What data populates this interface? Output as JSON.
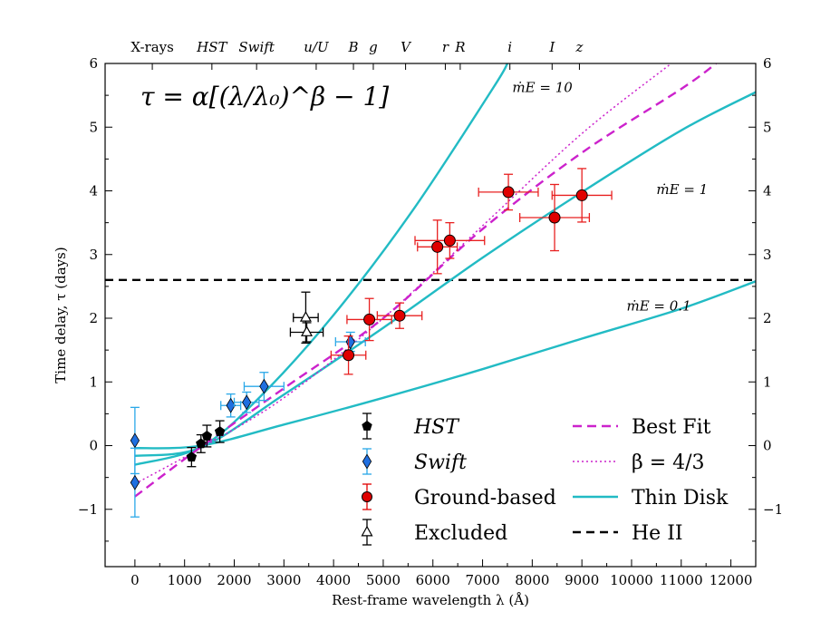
{
  "chart_data": {
    "type": "scatter",
    "xlabel": "Rest-frame wavelength λ (Å)",
    "ylabel": "Time delay, τ (days)",
    "xlim": [
      -600,
      12500
    ],
    "ylim": [
      -1.9,
      6.0
    ],
    "xticks": [
      0,
      1000,
      2000,
      3000,
      4000,
      5000,
      6000,
      7000,
      8000,
      9000,
      10000,
      11000,
      12000
    ],
    "yticks": [
      -1,
      0,
      1,
      2,
      3,
      4,
      5,
      6
    ],
    "formula": "τ = α[(λ/λ₀)^β − 1]",
    "top_bands": [
      {
        "label": "X-rays",
        "x": 350
      },
      {
        "label": "HST",
        "x": 1550
      },
      {
        "label": "Swift",
        "x": 2450
      },
      {
        "label": "u/U",
        "x": 3650
      },
      {
        "label": "B",
        "x": 4400
      },
      {
        "label": "g",
        "x": 4800
      },
      {
        "label": "V",
        "x": 5450
      },
      {
        "label": "r",
        "x": 6250
      },
      {
        "label": "R",
        "x": 6550
      },
      {
        "label": "i",
        "x": 7550
      },
      {
        "label": "I",
        "x": 8400
      },
      {
        "label": "z",
        "x": 8950
      }
    ],
    "series": [
      {
        "name": "HST",
        "color": "#000000",
        "marker": "pentagon",
        "points": [
          {
            "x": 1140,
            "y": -0.18,
            "xerr": 0,
            "yerr": 0.15
          },
          {
            "x": 1330,
            "y": 0.03,
            "xerr": 0,
            "yerr": 0.14
          },
          {
            "x": 1450,
            "y": 0.15,
            "xerr": 0,
            "yerr": 0.17
          },
          {
            "x": 1710,
            "y": 0.22,
            "xerr": 0,
            "yerr": 0.17
          }
        ]
      },
      {
        "name": "Swift",
        "color": "#1f6fe0",
        "errcolor": "#2aa8e8",
        "marker": "diamond",
        "points": [
          {
            "x": 0,
            "y": 0.08,
            "xerr": 0,
            "yerr": 0.52
          },
          {
            "x": 0,
            "y": -0.58,
            "xerr": 0,
            "yerr": 0.54
          },
          {
            "x": 1930,
            "y": 0.63,
            "xerr": 200,
            "yerr": 0.18
          },
          {
            "x": 2250,
            "y": 0.68,
            "xerr": 250,
            "yerr": 0.16
          },
          {
            "x": 2600,
            "y": 0.93,
            "xerr": 400,
            "yerr": 0.22
          },
          {
            "x": 4340,
            "y": 1.63,
            "xerr": 300,
            "yerr": 0.15
          }
        ]
      },
      {
        "name": "Ground-based",
        "color": "#e00000",
        "errcolor": "#e82020",
        "marker": "circle",
        "points": [
          {
            "x": 4300,
            "y": 1.42,
            "xerr": 350,
            "yerr": 0.3
          },
          {
            "x": 4720,
            "y": 1.98,
            "xerr": 450,
            "yerr": 0.33
          },
          {
            "x": 5330,
            "y": 2.04,
            "xerr": 450,
            "yerr": 0.2
          },
          {
            "x": 6090,
            "y": 3.12,
            "xerr": 400,
            "yerr": 0.42
          },
          {
            "x": 6340,
            "y": 3.22,
            "xerr": 700,
            "yerr": 0.28
          },
          {
            "x": 7520,
            "y": 3.98,
            "xerr": 600,
            "yerr": 0.28
          },
          {
            "x": 8450,
            "y": 3.58,
            "xerr": 700,
            "yerr": 0.52
          },
          {
            "x": 9000,
            "y": 3.93,
            "xerr": 600,
            "yerr": 0.42
          }
        ]
      },
      {
        "name": "Excluded",
        "color": "#000000",
        "marker": "open-triangle",
        "points": [
          {
            "x": 3440,
            "y": 2.01,
            "xerr": 250,
            "yerr": 0.4
          },
          {
            "x": 3460,
            "y": 1.78,
            "xerr": 330,
            "yerr": 0.15
          }
        ]
      }
    ],
    "fit_curves": {
      "alpha": 0.8,
      "lambda0": 1367,
      "lines": [
        {
          "name": "Best Fit",
          "style": "dashed",
          "color": "#cc22cc",
          "alpha": 0.8,
          "beta": 1.83
        },
        {
          "name": "β = 4/3",
          "style": "dotted",
          "color": "#cc22cc",
          "alpha": 0.8,
          "beta": 1.333
        },
        {
          "name": "Thin Disk ṁE = 10",
          "style": "solid",
          "color": "#22bbc4",
          "alpha": 0.3,
          "beta": 1.333
        },
        {
          "name": "Thin Disk ṁE = 1",
          "style": "solid",
          "color": "#22bbc4",
          "alpha": 0.8,
          "beta": 0.95
        },
        {
          "name": "Thin Disk ṁE = 0.1",
          "style": "solid",
          "color": "#22bbc4",
          "alpha": 0.3,
          "beta": 0.667
        }
      ]
    },
    "thin_disk": [
      {
        "label": "ṁE = 10",
        "points": [
          [
            0,
            -0.3
          ],
          [
            1330,
            -0.02
          ],
          [
            2500,
            0.75
          ],
          [
            4000,
            2.05
          ],
          [
            5600,
            3.7
          ],
          [
            7200,
            5.6
          ],
          [
            7500,
            6.0
          ]
        ]
      },
      {
        "label": "ṁE = 1",
        "points": [
          [
            0,
            -0.16
          ],
          [
            1330,
            -0.03
          ],
          [
            3000,
            0.8
          ],
          [
            5000,
            1.85
          ],
          [
            7000,
            2.95
          ],
          [
            9000,
            3.98
          ],
          [
            11000,
            4.95
          ],
          [
            12500,
            5.55
          ]
        ]
      },
      {
        "label": "ṁE = 0.1",
        "points": [
          [
            0,
            -0.04
          ],
          [
            1330,
            0.0
          ],
          [
            3000,
            0.33
          ],
          [
            5000,
            0.75
          ],
          [
            7000,
            1.2
          ],
          [
            9000,
            1.68
          ],
          [
            11000,
            2.15
          ],
          [
            12500,
            2.58
          ]
        ]
      }
    ],
    "best_fit": [
      [
        0,
        -0.8
      ],
      [
        1367,
        0.0
      ],
      [
        3000,
        0.9
      ],
      [
        5000,
        2.0
      ],
      [
        7000,
        3.4
      ],
      [
        9000,
        4.6
      ],
      [
        11000,
        5.6
      ],
      [
        11700,
        6.0
      ]
    ],
    "beta43": [
      [
        0,
        -0.6
      ],
      [
        1367,
        -0.02
      ],
      [
        3000,
        0.75
      ],
      [
        5000,
        2.0
      ],
      [
        7000,
        3.45
      ],
      [
        9000,
        4.9
      ],
      [
        10800,
        6.0
      ]
    ],
    "he_ii": {
      "y": 2.6
    },
    "annotations": [
      {
        "label": "ṁE = 10",
        "x": 7600,
        "y": 5.55
      },
      {
        "label": "ṁE = 1",
        "x": 10500,
        "y": 3.95
      },
      {
        "label": "ṁE = 0.1",
        "x": 9900,
        "y": 2.12
      }
    ],
    "legend": {
      "placement": "bottom-center",
      "entries": [
        {
          "key": "HST",
          "label": "HST",
          "italic": true
        },
        {
          "key": "Swift",
          "label": "Swift",
          "italic": true
        },
        {
          "key": "Ground-based",
          "label": "Ground-based",
          "italic": false
        },
        {
          "key": "Excluded",
          "label": "Excluded",
          "italic": false
        },
        {
          "key": "Best Fit",
          "label": "Best Fit",
          "italic": false
        },
        {
          "key": "beta43",
          "label": "β = 4/3",
          "italic": false
        },
        {
          "key": "Thin Disk",
          "label": "Thin Disk",
          "italic": false
        },
        {
          "key": "He II",
          "label": "He II",
          "italic": false
        }
      ]
    },
    "colors": {
      "hst": "#000000",
      "swift": "#1f6fe0",
      "swift_err": "#2aa8e8",
      "ground": "#e00000",
      "fit": "#cc22cc",
      "thin_disk": "#22bbc4",
      "he_ii": "#000000"
    }
  }
}
